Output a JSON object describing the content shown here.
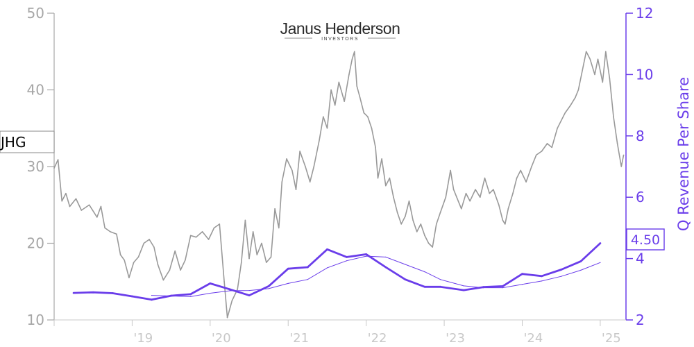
{
  "brand": {
    "name": "Janus Henderson",
    "tagline": "INVESTORS"
  },
  "ticker_label": "JHG",
  "current_value_label": "4.50",
  "colors": {
    "price_line": "#999999",
    "revenue_line": "#6a3dea",
    "left_axis": "#a6a6a6",
    "right_axis": "#6a3dea",
    "x_axis": "#c8c8c8"
  },
  "chart_data": {
    "type": "line",
    "y_axis_left": {
      "ticks": [
        "10",
        "20",
        "30",
        "40",
        "50"
      ],
      "range": [
        10,
        50
      ]
    },
    "y_axis_right": {
      "label": "Q Revenue Per Share",
      "ticks": [
        "2",
        "4",
        "6",
        "8",
        "10",
        "12"
      ],
      "range": [
        2,
        12
      ]
    },
    "x_axis": {
      "ticks": [
        "'19",
        "'20",
        "'21",
        "'22",
        "'23",
        "'24",
        "'25"
      ],
      "range": [
        2018.0,
        2025.33
      ]
    },
    "series": [
      {
        "role": "price",
        "axis": "left",
        "points": [
          [
            2018.0,
            29.8
          ],
          [
            2018.05,
            30.9
          ],
          [
            2018.1,
            25.5
          ],
          [
            2018.15,
            26.5
          ],
          [
            2018.2,
            24.8
          ],
          [
            2018.28,
            25.8
          ],
          [
            2018.35,
            24.3
          ],
          [
            2018.45,
            25.0
          ],
          [
            2018.55,
            23.4
          ],
          [
            2018.6,
            24.8
          ],
          [
            2018.65,
            22.0
          ],
          [
            2018.72,
            21.5
          ],
          [
            2018.8,
            21.2
          ],
          [
            2018.85,
            18.5
          ],
          [
            2018.9,
            17.8
          ],
          [
            2018.96,
            15.5
          ],
          [
            2019.02,
            17.5
          ],
          [
            2019.08,
            18.2
          ],
          [
            2019.15,
            20.0
          ],
          [
            2019.22,
            20.5
          ],
          [
            2019.28,
            19.5
          ],
          [
            2019.33,
            17.2
          ],
          [
            2019.4,
            15.2
          ],
          [
            2019.48,
            16.5
          ],
          [
            2019.55,
            19.0
          ],
          [
            2019.62,
            16.5
          ],
          [
            2019.68,
            17.8
          ],
          [
            2019.75,
            21.0
          ],
          [
            2019.82,
            20.8
          ],
          [
            2019.9,
            21.5
          ],
          [
            2019.98,
            20.5
          ],
          [
            2020.05,
            22.0
          ],
          [
            2020.12,
            22.5
          ],
          [
            2020.18,
            15.0
          ],
          [
            2020.22,
            10.3
          ],
          [
            2020.28,
            12.5
          ],
          [
            2020.35,
            14.0
          ],
          [
            2020.4,
            17.5
          ],
          [
            2020.45,
            23.0
          ],
          [
            2020.5,
            18.0
          ],
          [
            2020.55,
            21.5
          ],
          [
            2020.6,
            18.5
          ],
          [
            2020.66,
            20.0
          ],
          [
            2020.72,
            17.5
          ],
          [
            2020.78,
            18.2
          ],
          [
            2020.83,
            24.5
          ],
          [
            2020.88,
            22.0
          ],
          [
            2020.92,
            28.0
          ],
          [
            2020.98,
            31.0
          ],
          [
            2021.05,
            29.5
          ],
          [
            2021.1,
            27.0
          ],
          [
            2021.15,
            32.0
          ],
          [
            2021.22,
            30.0
          ],
          [
            2021.28,
            28.0
          ],
          [
            2021.33,
            30.0
          ],
          [
            2021.4,
            33.5
          ],
          [
            2021.45,
            36.5
          ],
          [
            2021.5,
            35.0
          ],
          [
            2021.55,
            40.0
          ],
          [
            2021.6,
            38.0
          ],
          [
            2021.65,
            41.0
          ],
          [
            2021.72,
            38.5
          ],
          [
            2021.78,
            42.0
          ],
          [
            2021.82,
            44.0
          ],
          [
            2021.85,
            45.0
          ],
          [
            2021.88,
            40.5
          ],
          [
            2021.92,
            39.0
          ],
          [
            2021.97,
            37.0
          ],
          [
            2022.02,
            36.5
          ],
          [
            2022.07,
            35.0
          ],
          [
            2022.12,
            32.5
          ],
          [
            2022.15,
            28.5
          ],
          [
            2022.2,
            31.0
          ],
          [
            2022.25,
            27.5
          ],
          [
            2022.3,
            28.5
          ],
          [
            2022.35,
            26.0
          ],
          [
            2022.4,
            24.0
          ],
          [
            2022.45,
            22.5
          ],
          [
            2022.5,
            23.5
          ],
          [
            2022.55,
            25.5
          ],
          [
            2022.6,
            23.0
          ],
          [
            2022.65,
            21.5
          ],
          [
            2022.7,
            22.5
          ],
          [
            2022.75,
            21.0
          ],
          [
            2022.8,
            20.0
          ],
          [
            2022.85,
            19.5
          ],
          [
            2022.9,
            22.5
          ],
          [
            2022.95,
            24.0
          ],
          [
            2023.02,
            26.0
          ],
          [
            2023.08,
            29.5
          ],
          [
            2023.12,
            27.0
          ],
          [
            2023.18,
            25.5
          ],
          [
            2023.22,
            24.5
          ],
          [
            2023.28,
            26.5
          ],
          [
            2023.33,
            25.5
          ],
          [
            2023.4,
            27.0
          ],
          [
            2023.46,
            26.0
          ],
          [
            2023.52,
            28.5
          ],
          [
            2023.58,
            26.5
          ],
          [
            2023.63,
            27.0
          ],
          [
            2023.7,
            25.0
          ],
          [
            2023.75,
            23.0
          ],
          [
            2023.78,
            22.5
          ],
          [
            2023.82,
            24.5
          ],
          [
            2023.88,
            26.5
          ],
          [
            2023.93,
            28.5
          ],
          [
            2023.98,
            29.5
          ],
          [
            2024.05,
            28.0
          ],
          [
            2024.12,
            30.0
          ],
          [
            2024.18,
            31.5
          ],
          [
            2024.25,
            32.0
          ],
          [
            2024.32,
            33.0
          ],
          [
            2024.38,
            32.5
          ],
          [
            2024.45,
            35.0
          ],
          [
            2024.5,
            36.0
          ],
          [
            2024.55,
            37.0
          ],
          [
            2024.62,
            38.0
          ],
          [
            2024.68,
            39.0
          ],
          [
            2024.72,
            40.0
          ],
          [
            2024.75,
            41.5
          ],
          [
            2024.78,
            43.0
          ],
          [
            2024.82,
            45.0
          ],
          [
            2024.87,
            44.0
          ],
          [
            2024.93,
            42.0
          ],
          [
            2024.97,
            44.0
          ],
          [
            2025.03,
            41.0
          ],
          [
            2025.07,
            45.0
          ],
          [
            2025.12,
            41.5
          ],
          [
            2025.17,
            36.5
          ],
          [
            2025.22,
            33.0
          ],
          [
            2025.27,
            30.0
          ],
          [
            2025.3,
            31.5
          ]
        ]
      },
      {
        "role": "q_revenue_per_share",
        "axis": "right",
        "points": [
          [
            2018.25,
            2.88
          ],
          [
            2018.5,
            2.9
          ],
          [
            2018.75,
            2.87
          ],
          [
            2019.0,
            2.77
          ],
          [
            2019.25,
            2.66
          ],
          [
            2019.5,
            2.79
          ],
          [
            2019.75,
            2.84
          ],
          [
            2020.0,
            3.19
          ],
          [
            2020.25,
            3.0
          ],
          [
            2020.5,
            2.8
          ],
          [
            2020.75,
            3.1
          ],
          [
            2021.0,
            3.67
          ],
          [
            2021.25,
            3.72
          ],
          [
            2021.5,
            4.3
          ],
          [
            2021.75,
            4.05
          ],
          [
            2022.0,
            4.14
          ],
          [
            2022.25,
            3.72
          ],
          [
            2022.5,
            3.32
          ],
          [
            2022.75,
            3.08
          ],
          [
            2022.95,
            3.08
          ],
          [
            2023.25,
            2.97
          ],
          [
            2023.5,
            3.07
          ],
          [
            2023.75,
            3.1
          ],
          [
            2024.0,
            3.5
          ],
          [
            2024.25,
            3.43
          ],
          [
            2024.5,
            3.64
          ],
          [
            2024.75,
            3.91
          ],
          [
            2025.0,
            4.5
          ]
        ]
      },
      {
        "role": "q_revenue_per_share_trailing_avg",
        "axis": "right",
        "points": [
          [
            2019.25,
            2.8
          ],
          [
            2019.5,
            2.78
          ],
          [
            2019.75,
            2.76
          ],
          [
            2020.0,
            2.87
          ],
          [
            2020.25,
            2.95
          ],
          [
            2020.5,
            2.96
          ],
          [
            2020.75,
            3.02
          ],
          [
            2021.0,
            3.19
          ],
          [
            2021.25,
            3.32
          ],
          [
            2021.5,
            3.7
          ],
          [
            2021.75,
            3.93
          ],
          [
            2022.0,
            4.08
          ],
          [
            2022.25,
            4.05
          ],
          [
            2022.5,
            3.81
          ],
          [
            2022.75,
            3.57
          ],
          [
            2022.95,
            3.32
          ],
          [
            2023.25,
            3.11
          ],
          [
            2023.5,
            3.05
          ],
          [
            2023.75,
            3.05
          ],
          [
            2024.0,
            3.16
          ],
          [
            2024.25,
            3.27
          ],
          [
            2024.5,
            3.42
          ],
          [
            2024.75,
            3.62
          ],
          [
            2025.0,
            3.87
          ]
        ]
      }
    ]
  }
}
